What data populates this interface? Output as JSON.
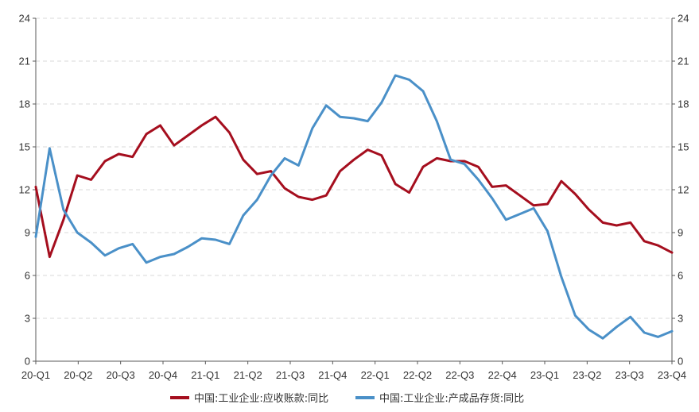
{
  "chart_data": {
    "type": "line",
    "title": "",
    "xlabel": "",
    "ylabel": "",
    "ylim": [
      0,
      24
    ],
    "y_ticks": [
      "0",
      "3",
      "6",
      "9",
      "12",
      "15",
      "18",
      "21",
      "24"
    ],
    "y2_ticks": [
      "0",
      "3",
      "6",
      "9",
      "12",
      "15",
      "18",
      "21",
      "24"
    ],
    "x_tick_labels": [
      "20-Q1",
      "20-Q2",
      "20-Q3",
      "20-Q4",
      "21-Q1",
      "21-Q2",
      "21-Q3",
      "21-Q4",
      "22-Q1",
      "22-Q2",
      "22-Q3",
      "22-Q4",
      "23-Q1",
      "23-Q2",
      "23-Q3",
      "23-Q4"
    ],
    "grid": "horizontal dashed",
    "legend_position": "bottom",
    "series": [
      {
        "name": "中国:工业企业:应收账款:同比",
        "color": "#a50e1e",
        "values": [
          12.2,
          7.3,
          9.9,
          13.0,
          12.7,
          14.0,
          14.5,
          14.3,
          15.9,
          16.5,
          15.1,
          15.8,
          16.5,
          17.1,
          16.0,
          14.1,
          13.1,
          13.3,
          12.1,
          11.5,
          11.3,
          11.6,
          13.3,
          14.1,
          14.8,
          14.4,
          12.4,
          11.8,
          13.6,
          14.2,
          14.0,
          14.0,
          13.6,
          12.2,
          12.3,
          11.6,
          10.9,
          11.0,
          12.6,
          11.7,
          10.6,
          9.7,
          9.5,
          9.7,
          8.4,
          8.1,
          7.6
        ]
      },
      {
        "name": "中国:工业企业:产成品存货:同比",
        "color": "#4a90c8",
        "values": [
          8.7,
          14.9,
          10.6,
          9.0,
          8.3,
          7.4,
          7.9,
          8.2,
          6.9,
          7.3,
          7.5,
          8.0,
          8.6,
          8.5,
          8.2,
          10.2,
          11.3,
          13.0,
          14.2,
          13.7,
          16.3,
          17.9,
          17.1,
          17.0,
          16.8,
          18.1,
          20.0,
          19.7,
          18.9,
          16.8,
          14.1,
          13.8,
          12.7,
          11.4,
          9.9,
          10.3,
          10.7,
          9.1,
          5.9,
          3.2,
          2.2,
          1.6,
          2.4,
          3.1,
          2.0,
          1.7,
          2.1
        ]
      }
    ]
  }
}
